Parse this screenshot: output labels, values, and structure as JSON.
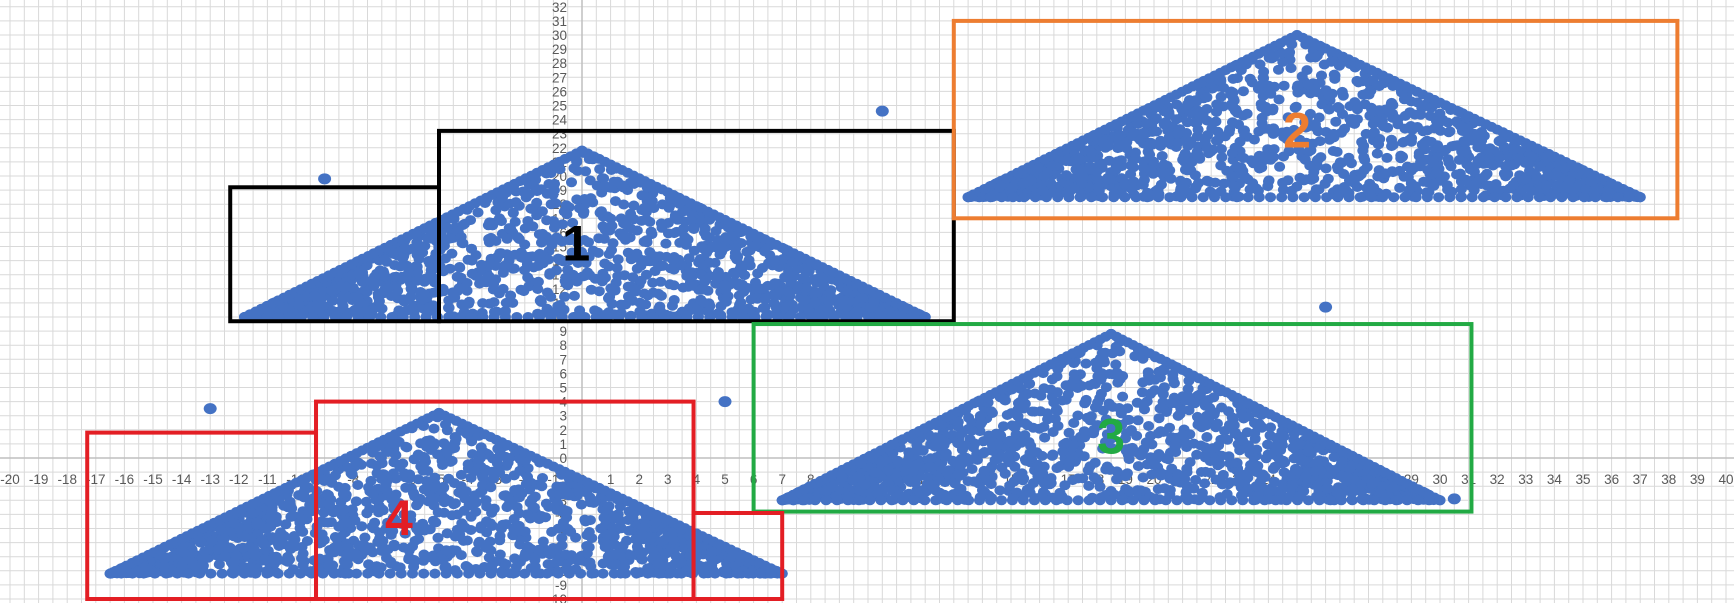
{
  "chart_data": {
    "type": "scatter",
    "title": "",
    "xlabel": "",
    "ylabel": "",
    "xlim": [
      -20,
      40
    ],
    "ylim": [
      -10,
      32
    ],
    "grid": true,
    "marker_color": "#4472C4",
    "series": [
      {
        "clusters": [
          {
            "shape": "triangle",
            "x_min": -11.8,
            "x_peak": 0.0,
            "x_max": 12.0,
            "y_base": 10.0,
            "y_peak": 21.8
          },
          {
            "shape": "triangle",
            "x_min": 13.5,
            "x_peak": 25.0,
            "x_max": 37.0,
            "y_base": 18.5,
            "y_peak": 30.0
          },
          {
            "shape": "triangle",
            "x_min": 7.0,
            "x_peak": 18.5,
            "x_max": 30.0,
            "y_base": -3.0,
            "y_peak": 8.8
          },
          {
            "shape": "triangle",
            "x_min": -16.5,
            "x_peak": -5.0,
            "x_max": 7.0,
            "y_base": -8.2,
            "y_peak": 3.2
          }
        ],
        "outliers": [
          {
            "x": -9.0,
            "y": 19.8
          },
          {
            "x": 10.5,
            "y": 24.6
          },
          {
            "x": 26.0,
            "y": 10.7
          },
          {
            "x": -13.0,
            "y": 3.5
          },
          {
            "x": 5.0,
            "y": 4.0
          },
          {
            "x": 30.5,
            "y": -2.9
          }
        ]
      }
    ],
    "regions": [
      {
        "label": "1",
        "color": "#000000",
        "x": [
          -12.3,
          -5.0
        ],
        "y": [
          9.7,
          19.2
        ]
      },
      {
        "label": "1",
        "color": "#000000",
        "x": [
          -5.0,
          13.0
        ],
        "y": [
          9.7,
          23.2
        ],
        "label_x": -0.2,
        "label_y": 15.3
      },
      {
        "label": "2",
        "color": "#ED7D31",
        "x": [
          13.0,
          38.3
        ],
        "y": [
          17.0,
          31.0
        ],
        "label_x": 25.0,
        "label_y": 23.3
      },
      {
        "label": "3",
        "color": "#22AA44",
        "x": [
          6.0,
          31.1
        ],
        "y": [
          -3.8,
          9.5
        ],
        "label_x": 18.5,
        "label_y": 1.6
      },
      {
        "label": "4",
        "color": "#E31E24",
        "x": [
          -17.3,
          -9.3
        ],
        "y": [
          -10.0,
          1.8
        ]
      },
      {
        "label": "4",
        "color": "#E31E24",
        "x": [
          -9.3,
          3.9
        ],
        "y": [
          -10.0,
          4.0
        ],
        "label_x": -6.4,
        "label_y": -4.2
      },
      {
        "label": "4",
        "color": "#E31E24",
        "x": [
          3.9,
          7.0
        ],
        "y": [
          -10.0,
          -3.9
        ]
      }
    ]
  }
}
